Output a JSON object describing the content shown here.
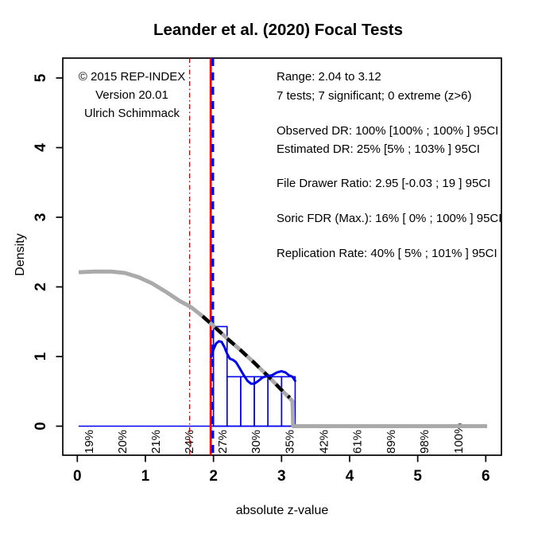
{
  "figure": {
    "title": "Leander et al. (2020) Focal Tests",
    "x_axis_label": "absolute z-value",
    "y_axis_label": "Density"
  },
  "annotations": {
    "left": [
      "© 2015 REP-INDEX",
      "Version 20.01",
      "Ulrich Schimmack"
    ],
    "right": [
      "Range: 2.04 to 3.12",
      "7 tests; 7 significant; 0 extreme (z>6)",
      "Observed DR: 100% [100% ; 100% ] 95CI",
      "Estimated DR: 25% [5% ; 103% ] 95CI",
      "File Drawer Ratio: 2.95 [-0.03 ; 19 ] 95CI",
      "Soric FDR (Max.): 16% [ 0% ; 100% ] 95CI",
      "Replication Rate: 40% [ 5% ; 101% ] 95CI"
    ]
  },
  "chart_data": {
    "type": "histogram",
    "subtype": "z-curve plot with model curves",
    "title": "Leander et al. (2020) Focal Tests",
    "xlabel": "absolute z-value",
    "ylabel": "Density",
    "xlim": [
      0,
      6
    ],
    "ylim": [
      0,
      5
    ],
    "grid": false,
    "x_ticks": [
      0,
      1,
      2,
      3,
      4,
      5,
      6
    ],
    "y_ticks": [
      0,
      1,
      2,
      3,
      4,
      5
    ],
    "histogram": {
      "bin_width": 0.2,
      "bins": [
        {
          "from": 2.0,
          "to": 2.2,
          "density": 1.43
        },
        {
          "from": 2.2,
          "to": 2.4,
          "density": 0.71
        },
        {
          "from": 2.4,
          "to": 2.6,
          "density": 0.71
        },
        {
          "from": 2.6,
          "to": 2.8,
          "density": 0.71
        },
        {
          "from": 2.8,
          "to": 3.0,
          "density": 0.71
        },
        {
          "from": 3.0,
          "to": 3.2,
          "density": 0.71
        }
      ]
    },
    "gray_model_curve": [
      [
        0.02,
        2.21
      ],
      [
        0.25,
        2.22
      ],
      [
        0.5,
        2.22
      ],
      [
        0.7,
        2.2
      ],
      [
        0.9,
        2.14
      ],
      [
        1.1,
        2.05
      ],
      [
        1.3,
        1.93
      ],
      [
        1.5,
        1.8
      ],
      [
        1.67,
        1.71
      ],
      [
        1.85,
        1.57
      ],
      [
        2.0,
        1.44
      ],
      [
        2.2,
        1.26
      ],
      [
        2.4,
        1.09
      ],
      [
        2.6,
        0.91
      ],
      [
        2.8,
        0.72
      ],
      [
        3.0,
        0.52
      ],
      [
        3.1,
        0.42
      ],
      [
        3.16,
        0.36
      ],
      [
        3.17,
        0.0
      ],
      [
        6.02,
        0.0
      ]
    ],
    "black_dashed_curve": [
      [
        1.84,
        1.58
      ],
      [
        2.0,
        1.44
      ],
      [
        2.2,
        1.26
      ],
      [
        2.4,
        1.09
      ],
      [
        2.6,
        0.91
      ],
      [
        2.8,
        0.72
      ],
      [
        3.0,
        0.52
      ],
      [
        3.12,
        0.41
      ]
    ],
    "blue_density_curve": [
      [
        1.97,
        1.0
      ],
      [
        2.0,
        1.1
      ],
      [
        2.04,
        1.19
      ],
      [
        2.08,
        1.22
      ],
      [
        2.12,
        1.21
      ],
      [
        2.16,
        1.14
      ],
      [
        2.2,
        1.04
      ],
      [
        2.24,
        0.97
      ],
      [
        2.29,
        0.95
      ],
      [
        2.33,
        0.92
      ],
      [
        2.38,
        0.84
      ],
      [
        2.44,
        0.74
      ],
      [
        2.5,
        0.65
      ],
      [
        2.55,
        0.61
      ],
      [
        2.6,
        0.61
      ],
      [
        2.66,
        0.65
      ],
      [
        2.72,
        0.7
      ],
      [
        2.79,
        0.72
      ],
      [
        2.86,
        0.73
      ],
      [
        2.93,
        0.77
      ],
      [
        3.0,
        0.79
      ],
      [
        3.06,
        0.77
      ],
      [
        3.11,
        0.73
      ],
      [
        3.16,
        0.71
      ],
      [
        3.2,
        0.65
      ]
    ],
    "vertical_lines": [
      {
        "z": 1.65,
        "style": "dashdot",
        "color": "#d40000",
        "name": "z-1.65-line"
      },
      {
        "z": 1.96,
        "style": "solid",
        "color": "#ff0000",
        "name": "significance-threshold-line"
      },
      {
        "z": 1.99,
        "style": "dashed",
        "color": "#0000ee",
        "name": "estimation-start-line"
      }
    ],
    "zero_line": {
      "from": 0.02,
      "to": 6.01,
      "color": "#0000ee"
    },
    "power_labels": [
      {
        "z": 0.17,
        "label": "19%"
      },
      {
        "z": 0.66,
        "label": "20%"
      },
      {
        "z": 1.15,
        "label": "21%"
      },
      {
        "z": 1.64,
        "label": "24%"
      },
      {
        "z": 2.13,
        "label": "27%"
      },
      {
        "z": 2.62,
        "label": "30%"
      },
      {
        "z": 3.12,
        "label": "35%"
      },
      {
        "z": 3.62,
        "label": "42%"
      },
      {
        "z": 4.11,
        "label": "61%"
      },
      {
        "z": 4.61,
        "label": "89%"
      },
      {
        "z": 5.1,
        "label": "98%"
      },
      {
        "z": 5.6,
        "label": "100%"
      }
    ],
    "colors": {
      "histogram_outline": "#0000ee",
      "density_curve": "#0000e8",
      "model_curve_gray": "#aaaaaa",
      "projection_dashed": "#000000",
      "significance_line": "#ff0000",
      "estimation_line": "#0000ee",
      "one_sided_line": "#d40000",
      "power_label_text": "#2e2e2e",
      "axis": "#000000"
    }
  }
}
